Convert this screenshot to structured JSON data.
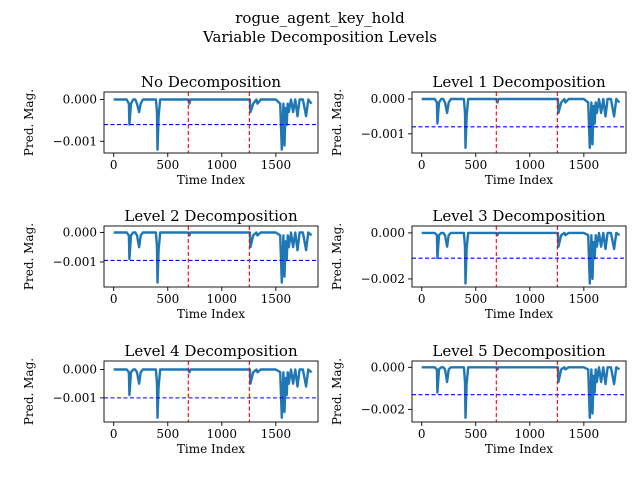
{
  "figure": {
    "suptitle_line1": "rogue_agent_key_hold",
    "suptitle_line2": "Variable Decomposition Levels"
  },
  "colors": {
    "series": "#1f77b4",
    "threshold": "#0000ff",
    "split": "#ff0000"
  },
  "chart_data": [
    {
      "type": "line",
      "title": "No Decomposition",
      "xlabel": "Time Index",
      "ylabel": "Pred. Mag.",
      "xlim": [
        -90,
        1890
      ],
      "ylim": [
        -0.00128,
        0.00018
      ],
      "xticks": [
        0,
        500,
        1000,
        1500
      ],
      "yticks": [
        0,
        -0.001
      ],
      "ytick_labels": [
        "0.000",
        "−0.001"
      ],
      "threshold": -0.0006,
      "splits": [
        690,
        1255
      ],
      "series": [
        {
          "x": [
            0,
            120,
            140,
            145,
            160,
            180,
            200,
            215,
            235,
            250,
            270,
            330,
            390,
            400,
            405,
            415,
            430,
            450,
            480,
            600,
            690,
            700,
            710,
            1000,
            1200,
            1260,
            1265,
            1290,
            1320,
            1330,
            1360,
            1420,
            1480,
            1500,
            1540,
            1555,
            1570,
            1580,
            1590,
            1600,
            1610,
            1620,
            1640,
            1660,
            1680,
            1700,
            1720,
            1750,
            1780,
            1800,
            1830
          ],
          "y": [
            0,
            0,
            -0.0001,
            -0.0006,
            -0.0001,
            0,
            0,
            -0.0001,
            -0.0003,
            -0.0001,
            0,
            0,
            0,
            -0.0003,
            -0.0012,
            -0.0004,
            0,
            0,
            0,
            0,
            0,
            -0.0001,
            0,
            0,
            0,
            0,
            -0.0003,
            -0.0001,
            0,
            -0.0001,
            0,
            0,
            0,
            0,
            -0.0001,
            -0.0012,
            -0.0001,
            -0.0011,
            -0.0002,
            -0.0006,
            -0.0001,
            -0.0003,
            0,
            -0.0003,
            0,
            -0.0004,
            0,
            0,
            -0.0004,
            0,
            -0.0001
          ]
        }
      ]
    },
    {
      "type": "line",
      "title": "Level 1 Decomposition",
      "xlabel": "Time Index",
      "ylabel": "Pred. Mag.",
      "xlim": [
        -90,
        1890
      ],
      "ylim": [
        -0.00155,
        0.0002
      ],
      "xticks": [
        0,
        500,
        1000,
        1500
      ],
      "yticks": [
        0,
        -0.001
      ],
      "ytick_labels": [
        "0.000",
        "−0.001"
      ],
      "threshold": -0.0008,
      "splits": [
        690,
        1255
      ],
      "series": [
        {
          "x": [
            0,
            120,
            140,
            145,
            160,
            180,
            200,
            215,
            235,
            250,
            270,
            330,
            390,
            400,
            405,
            415,
            430,
            450,
            480,
            600,
            690,
            700,
            710,
            1000,
            1200,
            1260,
            1265,
            1290,
            1320,
            1330,
            1360,
            1420,
            1480,
            1500,
            1540,
            1555,
            1570,
            1580,
            1590,
            1600,
            1610,
            1620,
            1640,
            1660,
            1680,
            1700,
            1720,
            1750,
            1780,
            1800,
            1830
          ],
          "y": [
            0,
            0,
            -0.0001,
            -0.0007,
            -0.0001,
            0,
            0,
            -0.0001,
            -0.0004,
            -0.0001,
            0,
            0,
            0,
            -0.0004,
            -0.0014,
            -0.0005,
            0,
            0,
            0,
            0,
            0,
            -0.0001,
            0,
            0,
            0,
            0,
            -0.0004,
            -0.0001,
            0,
            -0.0001,
            0,
            0,
            0,
            0,
            -0.0001,
            -0.0014,
            -0.0001,
            -0.0013,
            -0.0002,
            -0.0007,
            -0.0001,
            -0.0004,
            0,
            -0.0004,
            0,
            -0.0005,
            0,
            0,
            -0.0005,
            0,
            -0.0001
          ]
        }
      ]
    },
    {
      "type": "line",
      "title": "Level 2 Decomposition",
      "xlabel": "Time Index",
      "ylabel": "Pred. Mag.",
      "xlim": [
        -90,
        1890
      ],
      "ylim": [
        -0.00185,
        0.00022
      ],
      "xticks": [
        0,
        500,
        1000,
        1500
      ],
      "yticks": [
        0,
        -0.001
      ],
      "ytick_labels": [
        "0.000",
        "−0.001"
      ],
      "threshold": -0.00095,
      "splits": [
        690,
        1255
      ],
      "series": [
        {
          "x": [
            0,
            120,
            140,
            145,
            160,
            180,
            200,
            215,
            235,
            250,
            270,
            330,
            390,
            400,
            405,
            415,
            430,
            450,
            480,
            600,
            690,
            700,
            710,
            1000,
            1200,
            1260,
            1265,
            1290,
            1320,
            1330,
            1360,
            1420,
            1480,
            1500,
            1540,
            1555,
            1570,
            1580,
            1590,
            1600,
            1610,
            1620,
            1640,
            1660,
            1680,
            1700,
            1720,
            1750,
            1780,
            1800,
            1830
          ],
          "y": [
            0,
            0,
            -0.0001,
            -0.0009,
            -0.0001,
            0,
            0,
            -0.0001,
            -0.0005,
            -0.0001,
            0,
            0,
            0,
            -0.0005,
            -0.0017,
            -0.0006,
            0,
            0,
            0,
            0,
            0,
            -0.0001,
            0,
            0,
            0,
            0,
            -0.0005,
            -0.0001,
            0,
            -0.0001,
            0,
            0,
            0,
            0,
            -0.0001,
            -0.0017,
            -0.0001,
            -0.0015,
            -0.0003,
            -0.0009,
            -0.0001,
            -0.0005,
            0,
            -0.0005,
            0,
            -0.0006,
            0,
            0,
            -0.0006,
            0,
            -0.0001
          ]
        }
      ]
    },
    {
      "type": "line",
      "title": "Level 3 Decomposition",
      "xlabel": "Time Index",
      "ylabel": "Pred. Mag.",
      "xlim": [
        -90,
        1890
      ],
      "ylim": [
        -0.00235,
        0.0003
      ],
      "xticks": [
        0,
        500,
        1000,
        1500
      ],
      "yticks": [
        0,
        -0.002
      ],
      "ytick_labels": [
        "0.000",
        "−0.002"
      ],
      "threshold": -0.0011,
      "splits": [
        690,
        1255
      ],
      "series": [
        {
          "x": [
            0,
            120,
            140,
            145,
            160,
            180,
            200,
            215,
            235,
            250,
            270,
            330,
            390,
            400,
            405,
            415,
            430,
            450,
            480,
            600,
            690,
            700,
            710,
            1000,
            1200,
            1260,
            1265,
            1290,
            1320,
            1330,
            1360,
            1420,
            1480,
            1500,
            1540,
            1555,
            1570,
            1580,
            1590,
            1600,
            1610,
            1620,
            1640,
            1660,
            1680,
            1700,
            1720,
            1750,
            1780,
            1800,
            1830
          ],
          "y": [
            0,
            0,
            -0.0001,
            -0.0011,
            -0.0001,
            0,
            0,
            -0.0001,
            -0.0006,
            -0.0001,
            0,
            0,
            0,
            -0.0006,
            -0.0022,
            -0.0007,
            0,
            0,
            0,
            0,
            0,
            -0.0001,
            0,
            0,
            0,
            0,
            -0.0006,
            -0.0001,
            0,
            -0.0001,
            0,
            0,
            0,
            0,
            -0.0001,
            -0.0022,
            -0.0001,
            -0.002,
            -0.0004,
            -0.0011,
            -0.0001,
            -0.0006,
            0,
            -0.0006,
            0,
            -0.0007,
            0,
            0,
            -0.0007,
            0,
            -0.0001
          ]
        }
      ]
    },
    {
      "type": "line",
      "title": "Level 4 Decomposition",
      "xlabel": "Time Index",
      "ylabel": "Pred. Mag.",
      "xlim": [
        -90,
        1890
      ],
      "ylim": [
        -0.00185,
        0.0003
      ],
      "xticks": [
        0,
        500,
        1000,
        1500
      ],
      "yticks": [
        0,
        -0.001
      ],
      "ytick_labels": [
        "0.000",
        "−0.001"
      ],
      "threshold": -0.001,
      "splits": [
        690,
        1255
      ],
      "series": [
        {
          "x": [
            0,
            120,
            140,
            145,
            160,
            180,
            200,
            215,
            235,
            250,
            270,
            330,
            390,
            400,
            405,
            415,
            430,
            450,
            480,
            600,
            690,
            700,
            710,
            1000,
            1200,
            1260,
            1265,
            1290,
            1320,
            1330,
            1360,
            1420,
            1480,
            1500,
            1540,
            1555,
            1570,
            1580,
            1590,
            1600,
            1610,
            1620,
            1640,
            1660,
            1680,
            1700,
            1720,
            1750,
            1780,
            1800,
            1830
          ],
          "y": [
            0,
            0,
            -0.0001,
            -0.0009,
            -0.0001,
            0,
            0,
            -0.0001,
            -0.0005,
            -0.0001,
            0,
            0,
            0,
            -0.0005,
            -0.0017,
            -0.0006,
            0,
            0,
            0,
            0,
            0,
            -0.0001,
            0,
            0,
            0,
            0,
            -0.0005,
            -0.0001,
            0,
            -0.0001,
            0,
            0,
            0,
            0,
            -0.0001,
            -0.0017,
            -0.0001,
            -0.0015,
            -0.0003,
            -0.0009,
            -0.0001,
            -0.0005,
            0,
            -0.0005,
            0,
            -0.0006,
            0,
            0,
            -0.0006,
            0,
            -0.0001
          ]
        }
      ]
    },
    {
      "type": "line",
      "title": "Level 5 Decomposition",
      "xlabel": "Time Index",
      "ylabel": "Pred. Mag.",
      "xlim": [
        -90,
        1890
      ],
      "ylim": [
        -0.0026,
        0.0003
      ],
      "xticks": [
        0,
        500,
        1000,
        1500
      ],
      "yticks": [
        0,
        -0.002
      ],
      "ytick_labels": [
        "0.000",
        "−0.002"
      ],
      "threshold": -0.0013,
      "splits": [
        690,
        1255
      ],
      "series": [
        {
          "x": [
            0,
            120,
            140,
            145,
            160,
            180,
            200,
            215,
            235,
            250,
            270,
            330,
            390,
            400,
            405,
            415,
            430,
            450,
            480,
            600,
            690,
            700,
            710,
            1000,
            1200,
            1260,
            1265,
            1290,
            1320,
            1330,
            1360,
            1420,
            1480,
            1500,
            1540,
            1555,
            1570,
            1580,
            1590,
            1600,
            1610,
            1620,
            1640,
            1660,
            1680,
            1700,
            1720,
            1750,
            1780,
            1800,
            1830
          ],
          "y": [
            0,
            0,
            -0.0001,
            -0.0012,
            -0.0001,
            0,
            0,
            -0.0001,
            -0.0007,
            -0.0001,
            0,
            0,
            0,
            -0.0007,
            -0.0024,
            -0.0008,
            0,
            0,
            0,
            0,
            0,
            -0.0001,
            0,
            0,
            0,
            0,
            -0.0007,
            -0.0001,
            0,
            -0.0001,
            0,
            0,
            0,
            0,
            -0.0001,
            -0.0024,
            -0.0001,
            -0.0022,
            -0.0004,
            -0.0012,
            -0.0001,
            -0.0007,
            0,
            -0.0007,
            0,
            -0.0008,
            0,
            0,
            -0.0008,
            0,
            -0.0001
          ]
        }
      ]
    }
  ]
}
